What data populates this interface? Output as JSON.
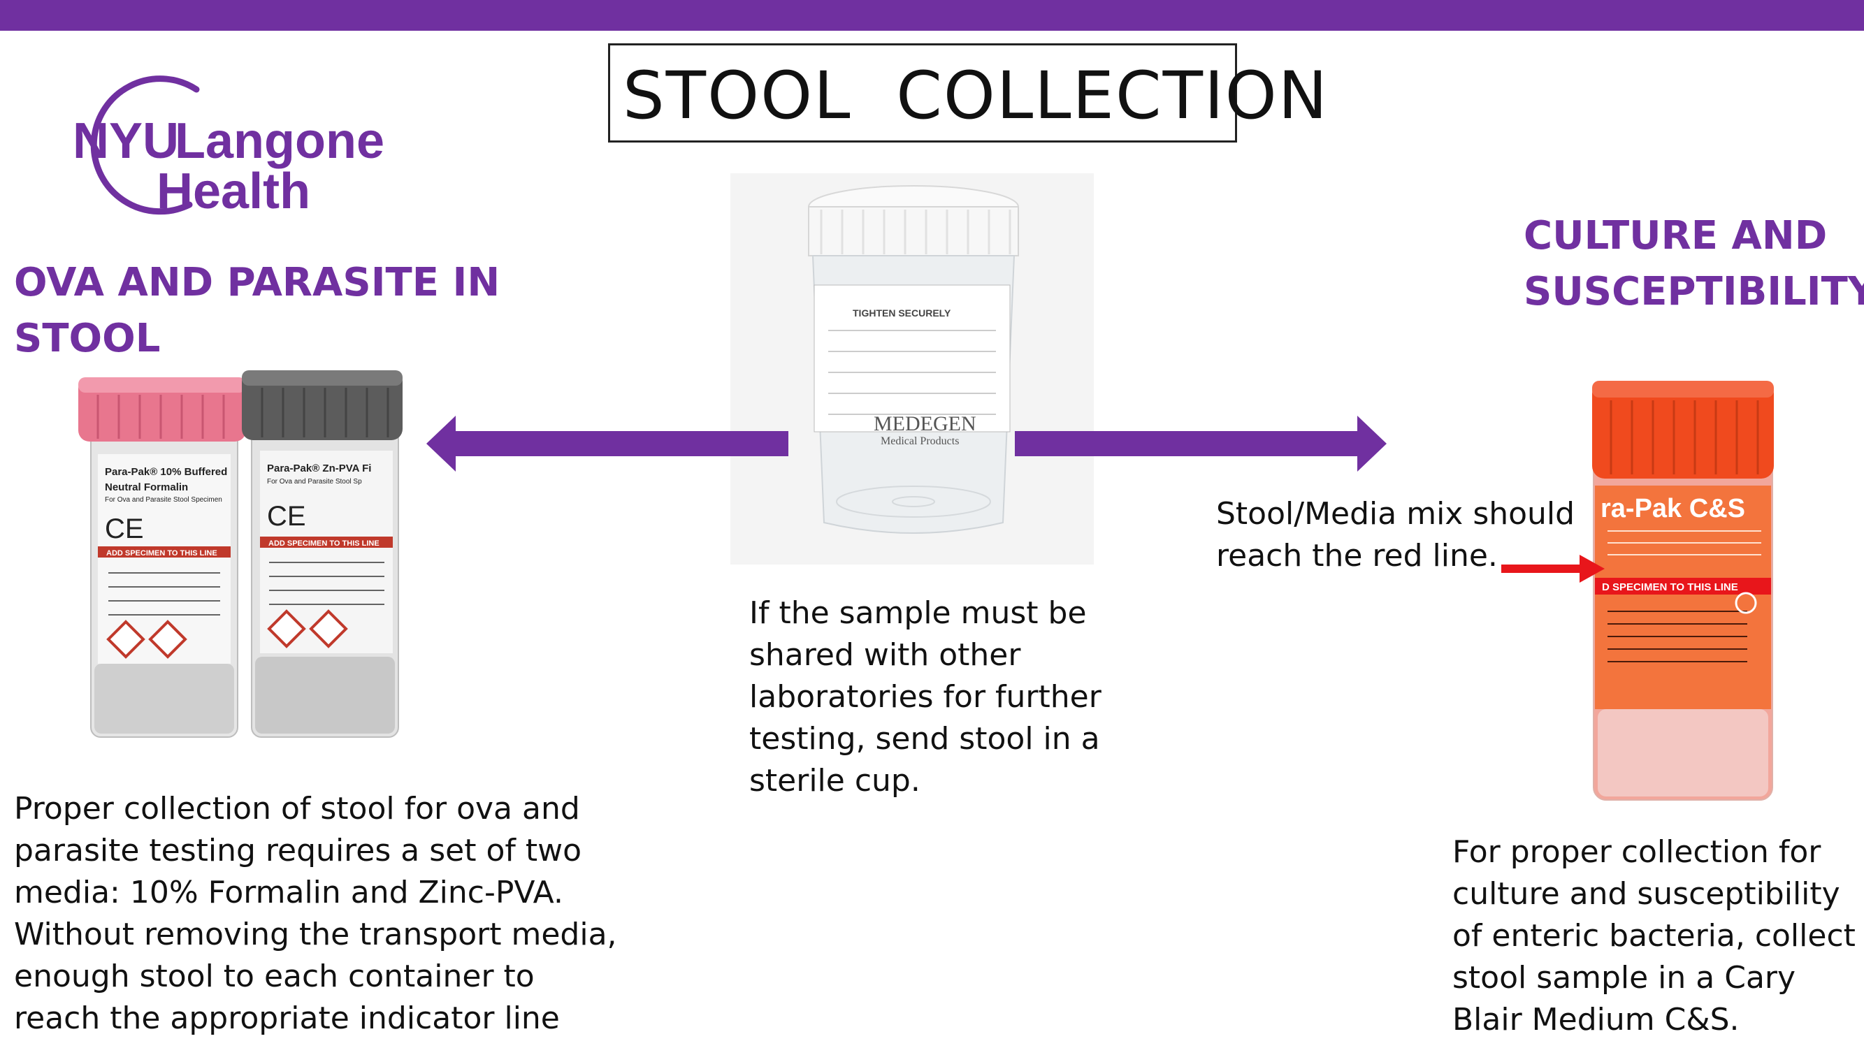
{
  "title": "STOOL  COLLECTION",
  "logo": {
    "line1_a": "NYU",
    "line1_b": "Langone",
    "line2": "Health"
  },
  "left": {
    "heading": "OVA AND PARASITE IN STOOL",
    "text": "Proper collection of stool for ova and parasite testing requires a set of two media: 10% Formalin and Zinc-PVA. Without removing the transport media, enough stool to each container to reach the appropriate indicator line",
    "tube_pink_label": [
      "Para-Pak® 10% Buffered",
      "Neutral Formalin",
      "For Ova and Parasite Stool Specimen"
    ],
    "tube_gray_label": [
      "Para-Pak® Zn-PVA Fi",
      "For Ova and Parasite Stool Sp"
    ],
    "tube_band": "ADD SPECIMEN TO THIS LINE"
  },
  "center": {
    "text": "If the sample must be shared with other laboratories for further testing, send stool in a sterile cup.",
    "cup_label": "TIGHTEN SECURELY",
    "cup_brand": "MEDEGEN",
    "cup_brand_sub": "Medical Products"
  },
  "right": {
    "heading": "CULTURE AND SUSCEPTIBILITY",
    "note": "Stool/Media mix should reach the red line.",
    "text": "For proper collection for culture and susceptibility of enteric bacteria, collect stool sample in a Cary Blair Medium C&S.",
    "tube_title": "ra-Pak C&S",
    "tube_band": "D SPECIMEN TO THIS LINE"
  },
  "colors": {
    "accent": "#7030a0",
    "pink_cap": "#e8768e",
    "gray_cap": "#5c5c5c",
    "orange_cap": "#f04a1e",
    "red_arrow": "#e8161b"
  },
  "icons": [
    "left-arrow-icon",
    "right-arrow-icon",
    "red-arrow-icon"
  ]
}
